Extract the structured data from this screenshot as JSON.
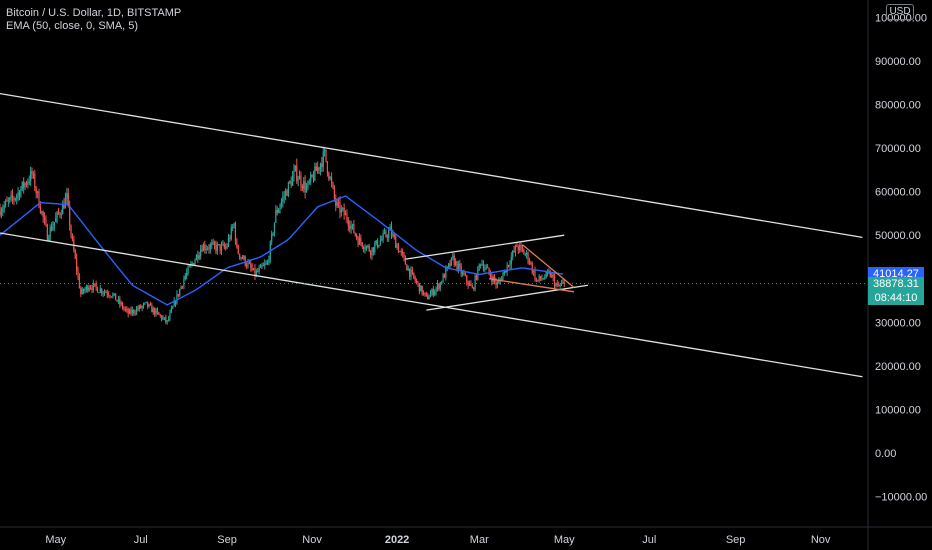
{
  "header": {
    "symbol_line": "Bitcoin / U.S. Dollar, 1D, BITSTAMP",
    "indicator_line": "EMA (50, close, 0, SMA, 5)"
  },
  "currency_button": "USD",
  "price_tags": {
    "ema_value": "41014.27",
    "last_price": "38878.31",
    "countdown": "08:44:10"
  },
  "colors": {
    "background": "#000000",
    "up_candle": "#26a69a",
    "down_candle": "#ef5350",
    "ema_line": "#2962ff",
    "trendline": "#e0e0e0",
    "wedge_line": "#e07b5a",
    "ema_tag": "#2962ff",
    "price_tag": "#26a69a"
  },
  "chart_data": {
    "type": "candlestick",
    "y_axis": {
      "ticks": [
        100000,
        90000,
        80000,
        70000,
        60000,
        50000,
        40000,
        30000,
        20000,
        10000,
        0,
        -10000
      ],
      "tick_labels": [
        "100000.00",
        "90000.00",
        "80000.00",
        "70000.00",
        "60000.00",
        "50000.00",
        "40000.00",
        "30000.00",
        "20000.00",
        "10000.00",
        "0.00",
        "−10000.00"
      ],
      "range": [
        -17000,
        104000
      ],
      "position": "right"
    },
    "x_axis": {
      "labels": [
        "May",
        "Jul",
        "Sep",
        "Nov",
        "2022",
        "Mar",
        "May",
        "Jul",
        "Sep",
        "Nov"
      ],
      "label_dates": [
        "2021-05-01",
        "2021-07-01",
        "2021-09-01",
        "2021-11-01",
        "2022-01-01",
        "2022-03-01",
        "2022-05-01",
        "2022-07-01",
        "2022-09-01",
        "2022-11-01"
      ],
      "bold_labels": [
        "2022"
      ],
      "range": [
        "2021-03-22",
        "2022-12-05"
      ]
    },
    "price_anchors": [
      [
        "2021-03-22",
        56000
      ],
      [
        "2021-04-01",
        58500
      ],
      [
        "2021-04-14",
        64000
      ],
      [
        "2021-04-25",
        50000
      ],
      [
        "2021-05-09",
        58500
      ],
      [
        "2021-05-12",
        50000
      ],
      [
        "2021-05-19",
        36500
      ],
      [
        "2021-05-25",
        38500
      ],
      [
        "2021-06-10",
        36500
      ],
      [
        "2021-06-22",
        32000
      ],
      [
        "2021-07-05",
        34000
      ],
      [
        "2021-07-20",
        30000
      ],
      [
        "2021-08-01",
        40000
      ],
      [
        "2021-08-14",
        47500
      ],
      [
        "2021-08-31",
        47000
      ],
      [
        "2021-09-06",
        52500
      ],
      [
        "2021-09-08",
        46500
      ],
      [
        "2021-09-21",
        41000
      ],
      [
        "2021-09-30",
        43500
      ],
      [
        "2021-10-06",
        55000
      ],
      [
        "2021-10-20",
        64500
      ],
      [
        "2021-10-28",
        60500
      ],
      [
        "2021-11-10",
        68500
      ],
      [
        "2021-11-18",
        57000
      ],
      [
        "2021-11-26",
        54000
      ],
      [
        "2021-12-04",
        49000
      ],
      [
        "2021-12-13",
        46500
      ],
      [
        "2021-12-27",
        51000
      ],
      [
        "2022-01-10",
        41500
      ],
      [
        "2022-01-22",
        35500
      ],
      [
        "2022-01-31",
        38500
      ],
      [
        "2022-02-10",
        44500
      ],
      [
        "2022-02-24",
        37500
      ],
      [
        "2022-03-02",
        44000
      ],
      [
        "2022-03-14",
        38500
      ],
      [
        "2022-03-28",
        47500
      ],
      [
        "2022-04-05",
        45000
      ],
      [
        "2022-04-11",
        39500
      ],
      [
        "2022-04-21",
        41000
      ],
      [
        "2022-04-26",
        38000
      ],
      [
        "2022-05-01",
        38878.31
      ]
    ],
    "ema50_anchors": [
      [
        "2021-03-22",
        50000
      ],
      [
        "2021-04-20",
        57500
      ],
      [
        "2021-05-10",
        57000
      ],
      [
        "2021-06-01",
        48000
      ],
      [
        "2021-06-25",
        38500
      ],
      [
        "2021-07-20",
        34000
      ],
      [
        "2021-08-10",
        37500
      ],
      [
        "2021-09-01",
        42500
      ],
      [
        "2021-09-25",
        45000
      ],
      [
        "2021-10-15",
        49000
      ],
      [
        "2021-11-05",
        56500
      ],
      [
        "2021-11-25",
        59000
      ],
      [
        "2021-12-20",
        53000
      ],
      [
        "2022-01-15",
        46500
      ],
      [
        "2022-02-05",
        42500
      ],
      [
        "2022-03-01",
        41000
      ],
      [
        "2022-04-01",
        42500
      ],
      [
        "2022-05-01",
        41014.27
      ]
    ],
    "trendlines": [
      {
        "role": "channel upper",
        "from": [
          "2021-03-22",
          82500
        ],
        "to": [
          "2022-12-01",
          49500
        ]
      },
      {
        "role": "channel lower",
        "from": [
          "2021-03-22",
          50500
        ],
        "to": [
          "2022-12-01",
          17500
        ]
      },
      {
        "role": "flag upper",
        "from": [
          "2022-01-07",
          44500
        ],
        "to": [
          "2022-05-01",
          50000
        ]
      },
      {
        "role": "flag lower",
        "from": [
          "2022-01-22",
          32800
        ],
        "to": [
          "2022-05-18",
          38500
        ]
      },
      {
        "role": "wedge upper",
        "from": [
          "2022-04-01",
          47800
        ],
        "to": [
          "2022-05-08",
          38000
        ],
        "color": "wedge"
      },
      {
        "role": "wedge lower",
        "from": [
          "2022-03-08",
          40000
        ],
        "to": [
          "2022-05-08",
          37000
        ],
        "color": "wedge"
      }
    ],
    "last_price": 38878.31,
    "ema_last": 41014.27,
    "grid": false,
    "legend": "top-left"
  }
}
